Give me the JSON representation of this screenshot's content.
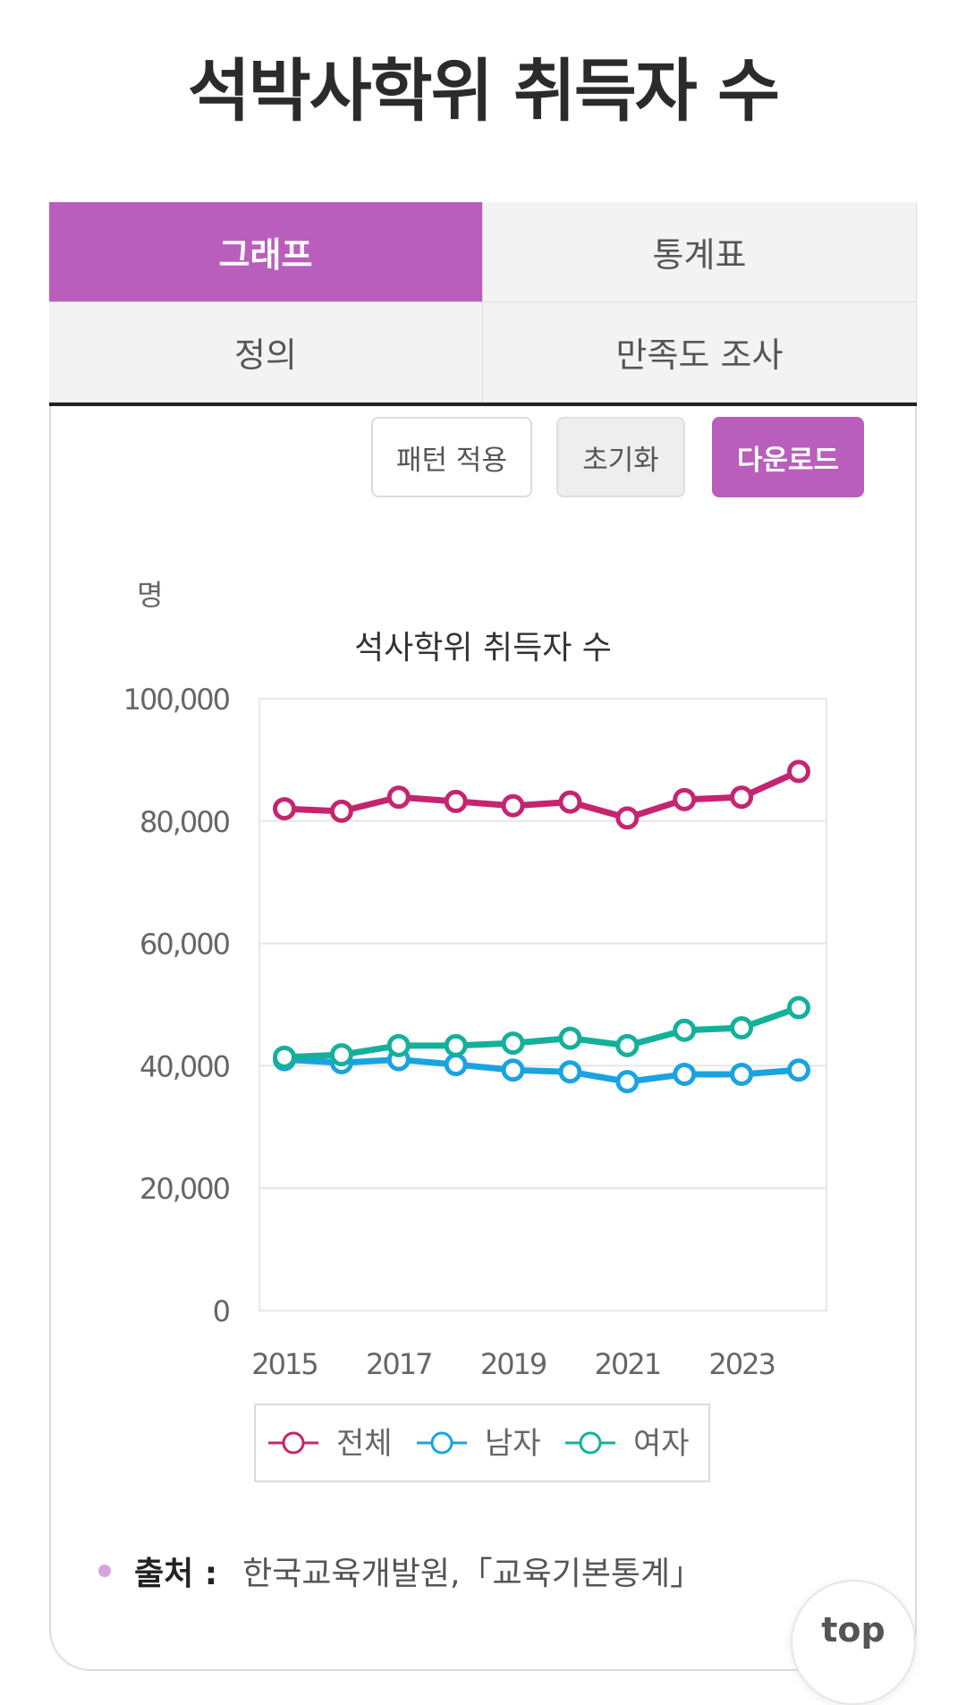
{
  "page": {
    "title": "석박사학위 취득자 수"
  },
  "tabs": [
    {
      "label": "그래프",
      "active": true
    },
    {
      "label": "통계표",
      "active": false
    },
    {
      "label": "정의",
      "active": false
    },
    {
      "label": "만족도 조사",
      "active": false
    }
  ],
  "toolbar": {
    "pattern_label": "패턴 적용",
    "reset_label": "초기화",
    "download_label": "다운로드"
  },
  "colors": {
    "accent": "#b95ebd",
    "total": "#c5256f",
    "male": "#1aa3e0",
    "female": "#15b09a"
  },
  "chart_data": {
    "type": "line",
    "title": "석사학위 취득자 수",
    "unit": "명",
    "x": [
      2015,
      2016,
      2017,
      2018,
      2019,
      2020,
      2021,
      2022,
      2023,
      2024
    ],
    "x_tick_labels": [
      "2015",
      "2017",
      "2019",
      "2021",
      "2023"
    ],
    "y_tick_labels": [
      "0",
      "20,000",
      "40,000",
      "60,000",
      "80,000",
      "100,000"
    ],
    "ylim": [
      0,
      100000
    ],
    "grid": true,
    "legend_position": "bottom",
    "series": [
      {
        "name": "전체",
        "color": "#c5256f",
        "values": [
          82000,
          81600,
          83900,
          83200,
          82500,
          83100,
          80500,
          83500,
          83900,
          88100
        ]
      },
      {
        "name": "남자",
        "color": "#1aa3e0",
        "values": [
          41000,
          40500,
          41000,
          40200,
          39300,
          39000,
          37400,
          38600,
          38600,
          39300
        ]
      },
      {
        "name": "여자",
        "color": "#15b09a",
        "values": [
          41400,
          41800,
          43300,
          43300,
          43700,
          44500,
          43300,
          45800,
          46200,
          49500
        ]
      }
    ]
  },
  "source": {
    "label": "출처 :",
    "text": "한국교육개발원,「교육기본통계」"
  },
  "top_button": {
    "label": "top"
  }
}
